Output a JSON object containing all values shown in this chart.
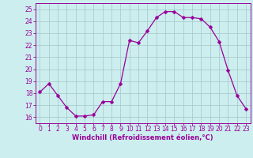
{
  "x": [
    0,
    1,
    2,
    3,
    4,
    5,
    6,
    7,
    8,
    9,
    10,
    11,
    12,
    13,
    14,
    15,
    16,
    17,
    18,
    19,
    20,
    21,
    22,
    23
  ],
  "y": [
    18.1,
    18.8,
    17.8,
    16.8,
    16.1,
    16.1,
    16.2,
    17.3,
    17.3,
    18.8,
    22.4,
    22.2,
    23.2,
    24.3,
    24.8,
    24.8,
    24.3,
    24.3,
    24.2,
    23.5,
    22.3,
    19.9,
    17.8,
    16.7
  ],
  "line_color": "#990099",
  "marker": "D",
  "marker_size": 2.5,
  "bg_color": "#cceeee",
  "grid_color": "#aacccc",
  "xlabel": "Windchill (Refroidissement éolien,°C)",
  "xlabel_color": "#990099",
  "tick_color": "#990099",
  "spine_color": "#990099",
  "ylim": [
    15.5,
    25.5
  ],
  "xlim": [
    -0.5,
    23.5
  ],
  "yticks": [
    16,
    17,
    18,
    19,
    20,
    21,
    22,
    23,
    24,
    25
  ],
  "xticks": [
    0,
    1,
    2,
    3,
    4,
    5,
    6,
    7,
    8,
    9,
    10,
    11,
    12,
    13,
    14,
    15,
    16,
    17,
    18,
    19,
    20,
    21,
    22,
    23
  ],
  "tick_fontsize": 5.5,
  "xlabel_fontsize": 6.0
}
